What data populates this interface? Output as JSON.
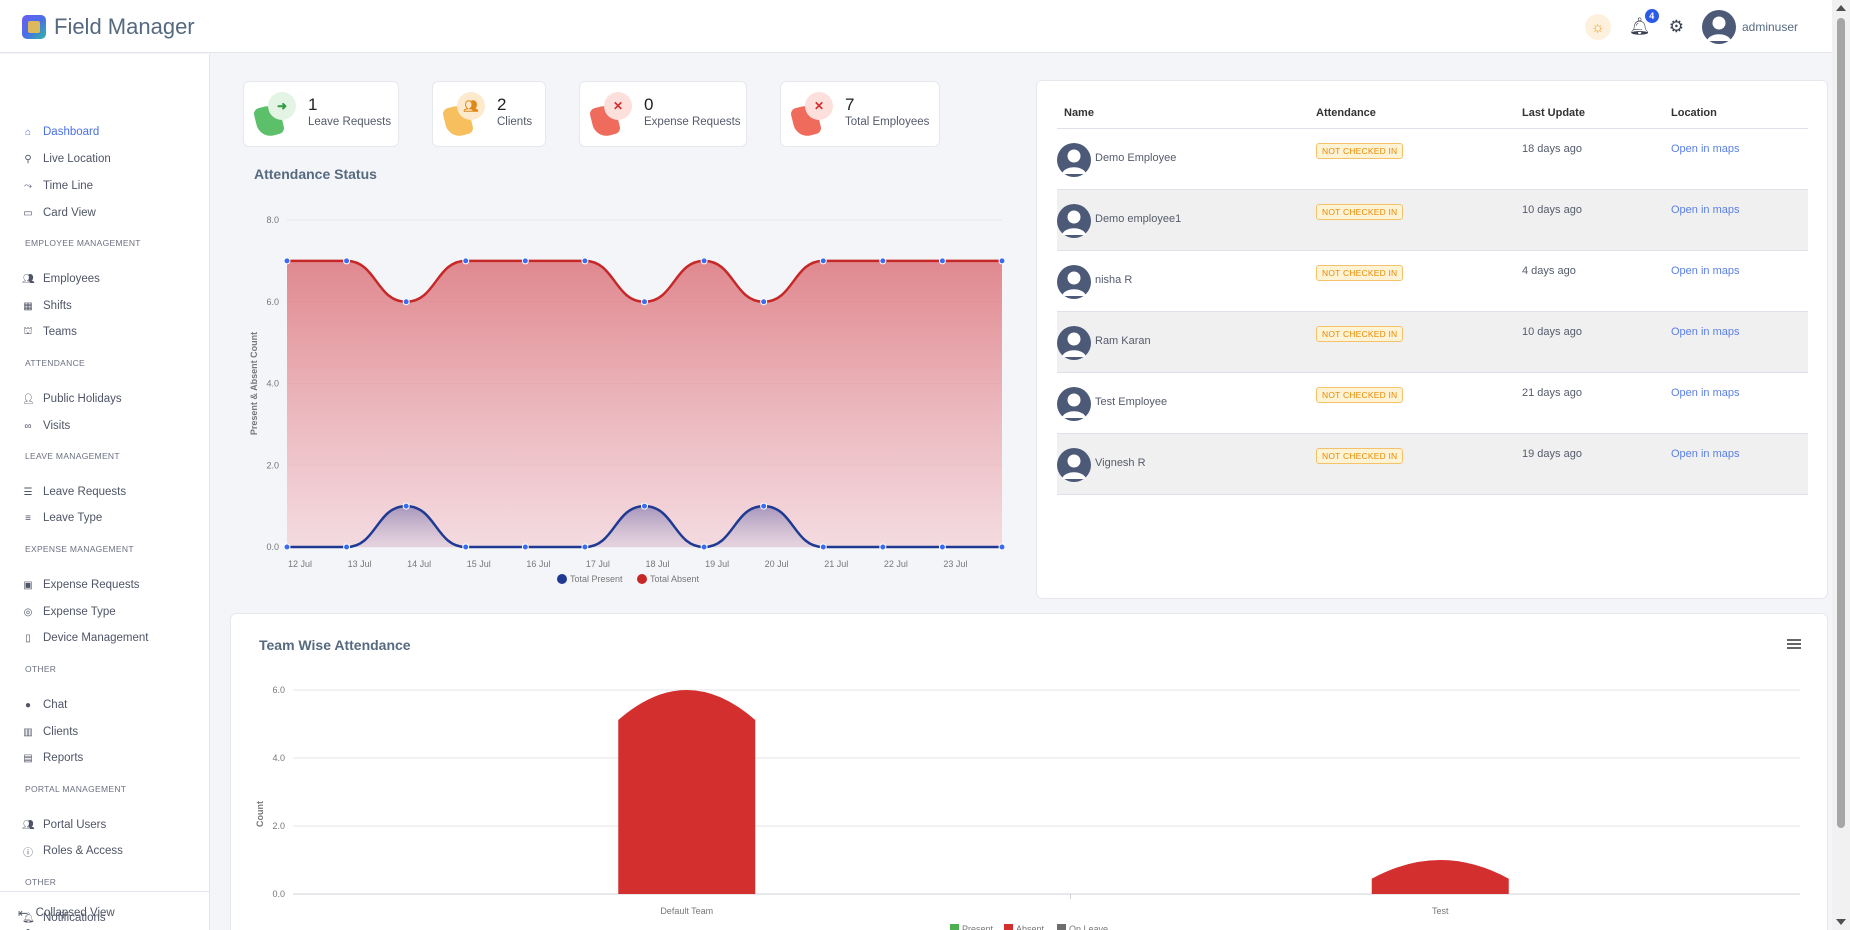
{
  "app": {
    "name": "Field Manager"
  },
  "header": {
    "notification_count": "4",
    "user_name": "adminuser"
  },
  "sidebar": {
    "groups": [
      {
        "heading": "",
        "items": [
          {
            "label": "Dashboard",
            "icon": "home-icon",
            "active": true
          },
          {
            "label": "Live Location",
            "icon": "person-pin-icon"
          },
          {
            "label": "Time Line",
            "icon": "route-icon"
          },
          {
            "label": "Card View",
            "icon": "card-icon"
          }
        ]
      },
      {
        "heading": "EMPLOYEE MANAGEMENT",
        "items": [
          {
            "label": "Employees",
            "icon": "users-icon"
          },
          {
            "label": "Shifts",
            "icon": "calendar-icon"
          },
          {
            "label": "Teams",
            "icon": "sitemap-icon"
          }
        ]
      },
      {
        "heading": "ATTENDANCE",
        "items": [
          {
            "label": "Public Holidays",
            "icon": "user-clock-icon"
          },
          {
            "label": "Visits",
            "icon": "glasses-icon"
          }
        ]
      },
      {
        "heading": "LEAVE MANAGEMENT",
        "items": [
          {
            "label": "Leave Requests",
            "icon": "list-icon"
          },
          {
            "label": "Leave Type",
            "icon": "list-alt-icon"
          }
        ]
      },
      {
        "heading": "EXPENSE MANAGEMENT",
        "items": [
          {
            "label": "Expense Requests",
            "icon": "money-icon"
          },
          {
            "label": "Expense Type",
            "icon": "coins-icon"
          },
          {
            "label": "Device Management",
            "icon": "mobile-icon"
          }
        ]
      },
      {
        "heading": "OTHER",
        "items": [
          {
            "label": "Chat",
            "icon": "chat-icon"
          },
          {
            "label": "Clients",
            "icon": "building-icon"
          },
          {
            "label": "Reports",
            "icon": "file-icon"
          }
        ]
      },
      {
        "heading": "PORTAL MANAGEMENT",
        "items": [
          {
            "label": "Portal Users",
            "icon": "users-icon"
          },
          {
            "label": "Roles & Access",
            "icon": "info-icon"
          }
        ]
      },
      {
        "heading": "OTHER",
        "items": [
          {
            "label": "Notifications",
            "icon": "bell-icon"
          }
        ]
      }
    ],
    "collapse_label": "Collapsed View"
  },
  "stats": [
    {
      "value": "1",
      "label": "Leave Requests",
      "icon": "sign-out-icon",
      "color": "#4caf50"
    },
    {
      "value": "2",
      "label": "Clients",
      "icon": "people-icon",
      "color": "#f5a623"
    },
    {
      "value": "0",
      "label": "Expense Requests",
      "icon": "times-icon",
      "color": "#e53935"
    },
    {
      "value": "7",
      "label": "Total Employees",
      "icon": "times-icon",
      "color": "#e53935"
    }
  ],
  "attendance": {
    "title": "Attendance Status"
  },
  "table": {
    "headers": {
      "name": "Name",
      "attendance": "Attendance",
      "last_update": "Last Update",
      "location": "Location"
    },
    "rows": [
      {
        "name": "Demo Employee",
        "status": "NOT CHECKED IN",
        "last_update": "18 days ago",
        "location": "Open in maps"
      },
      {
        "name": "Demo employee1",
        "status": "NOT CHECKED IN",
        "last_update": "10 days ago",
        "location": "Open in maps"
      },
      {
        "name": "nisha R",
        "status": "NOT CHECKED IN",
        "last_update": "4 days ago",
        "location": "Open in maps"
      },
      {
        "name": "Ram Karan",
        "status": "NOT CHECKED IN",
        "last_update": "10 days ago",
        "location": "Open in maps"
      },
      {
        "name": "Test Employee",
        "status": "NOT CHECKED IN",
        "last_update": "21 days ago",
        "location": "Open in maps"
      },
      {
        "name": "Vignesh R",
        "status": "NOT CHECKED IN",
        "last_update": "19 days ago",
        "location": "Open in maps"
      }
    ]
  },
  "team": {
    "title": "Team Wise Attendance"
  },
  "chart_data": [
    {
      "type": "area",
      "title": "Attendance Status",
      "xlabel": "",
      "ylabel": "Present & Absent Count",
      "x": [
        "12 Jul",
        "13 Jul",
        "14 Jul",
        "15 Jul",
        "16 Jul",
        "17 Jul",
        "18 Jul",
        "19 Jul",
        "20 Jul",
        "21 Jul",
        "22 Jul",
        "23 Jul",
        ""
      ],
      "x_tick_labels": [
        "12 Jul",
        "13 Jul",
        "14 Jul",
        "15 Jul",
        "16 Jul",
        "17 Jul",
        "18 Jul",
        "19 Jul",
        "20 Jul",
        "21 Jul",
        "22 Jul",
        "23 Jul"
      ],
      "ylim": [
        0,
        8
      ],
      "y_ticks": [
        "0.0",
        "2.0",
        "4.0",
        "6.0",
        "8.0"
      ],
      "legend_position": "bottom",
      "series": [
        {
          "name": "Total Present",
          "color": "#1f3a93",
          "values": [
            0,
            0,
            1,
            0,
            0,
            0,
            1,
            0,
            1,
            0,
            0,
            0,
            0
          ]
        },
        {
          "name": "Total Absent",
          "color": "#c62828",
          "values": [
            7,
            7,
            6,
            7,
            7,
            7,
            6,
            7,
            6,
            7,
            7,
            7,
            7
          ]
        }
      ],
      "grid": true
    },
    {
      "type": "bar",
      "title": "Team Wise Attendance",
      "xlabel": "",
      "ylabel": "Count",
      "categories": [
        "Default Team",
        "Test"
      ],
      "ylim": [
        0,
        6
      ],
      "y_ticks": [
        "0.0",
        "2.0",
        "4.0",
        "6.0"
      ],
      "legend_position": "bottom",
      "series": [
        {
          "name": "Present",
          "color": "#4caf50",
          "values": [
            0,
            0
          ]
        },
        {
          "name": "Absent",
          "color": "#d32f2f",
          "values": [
            6,
            1
          ]
        },
        {
          "name": "On Leave",
          "color": "#6d6d6d",
          "values": [
            0,
            0
          ]
        }
      ],
      "grid": true
    }
  ]
}
